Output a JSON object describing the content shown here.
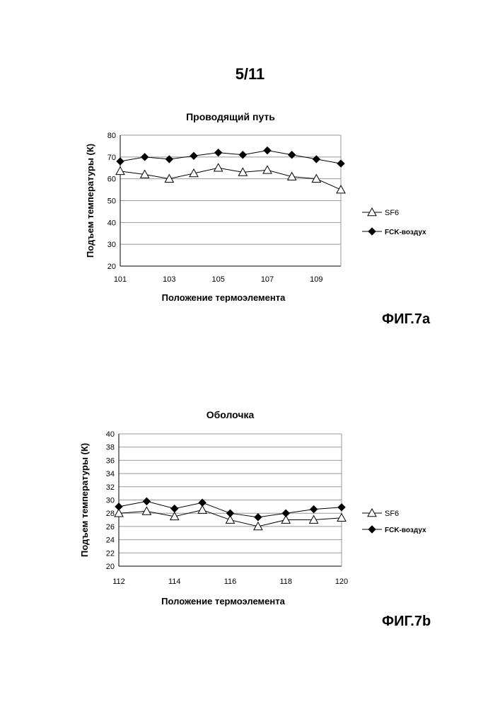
{
  "page_number": "5/11",
  "figures": [
    {
      "label": "ФИГ.7a"
    },
    {
      "label": "ФИГ.7b"
    }
  ],
  "colors": {
    "grid": "#999999",
    "series": "#000000"
  },
  "chart_data": [
    {
      "type": "line",
      "title": "Проводящий путь",
      "xlabel": "Положение термоэлемента",
      "ylabel": "Подъем температуры (К)",
      "x": [
        101,
        102,
        103,
        104,
        105,
        106,
        107,
        108,
        109,
        110
      ],
      "xtick_labels": [
        "101",
        "103",
        "105",
        "107",
        "109"
      ],
      "ylim": [
        20,
        80
      ],
      "yticks": [
        20,
        30,
        40,
        50,
        60,
        70,
        80
      ],
      "grid": true,
      "legend_position": "right",
      "series": [
        {
          "name": "SF6",
          "marker": "open-triangle",
          "values": [
            63.5,
            62,
            60,
            62.5,
            65,
            63,
            64,
            61,
            60,
            55
          ]
        },
        {
          "name": "FCK-воздух",
          "marker": "filled-diamond",
          "values": [
            68,
            70,
            69,
            70.5,
            72,
            71,
            73,
            71,
            69,
            67
          ]
        }
      ]
    },
    {
      "type": "line",
      "title": "Оболочка",
      "xlabel": "Положение термоэлемента",
      "ylabel": "Подъем температуры (К)",
      "x": [
        112,
        113,
        114,
        115,
        116,
        117,
        118,
        119,
        120
      ],
      "xtick_labels": [
        "112",
        "114",
        "116",
        "118",
        "120"
      ],
      "ylim": [
        20,
        40
      ],
      "yticks": [
        20,
        22,
        24,
        26,
        28,
        30,
        32,
        34,
        36,
        38,
        40
      ],
      "grid": true,
      "legend_position": "right",
      "series": [
        {
          "name": "SF6",
          "marker": "open-triangle",
          "values": [
            28,
            28.3,
            27.5,
            28.5,
            27,
            26,
            27,
            27,
            27.3
          ]
        },
        {
          "name": "FCK-воздух",
          "marker": "filled-diamond",
          "values": [
            29,
            29.8,
            28.7,
            29.6,
            28,
            27.4,
            28,
            28.6,
            28.9
          ]
        }
      ]
    }
  ]
}
